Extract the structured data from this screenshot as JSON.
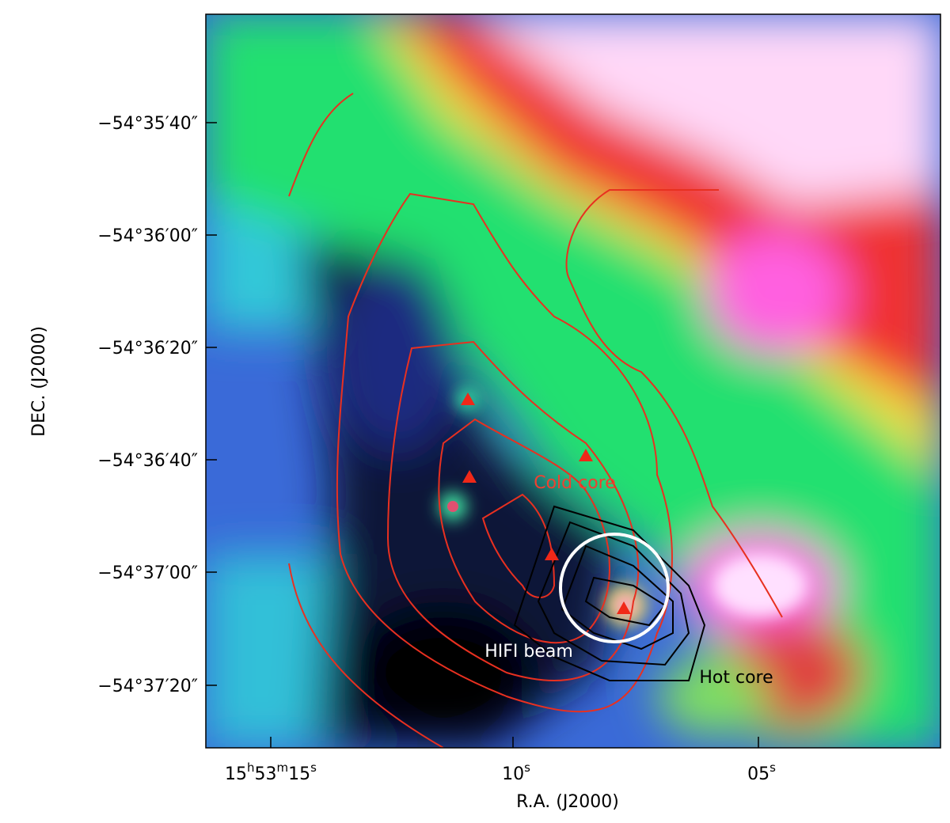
{
  "figure": {
    "x_axis": {
      "label": "R.A. (J2000)",
      "ticks": [
        {
          "parts": [
            "15",
            "h",
            "53",
            "m",
            "15",
            "s"
          ]
        },
        {
          "parts": [
            "10",
            "s"
          ]
        },
        {
          "parts": [
            "05",
            "s"
          ]
        }
      ]
    },
    "y_axis": {
      "label": "DEC. (J2000)",
      "ticks": [
        "−54°35′40″",
        "−54°36′00″",
        "−54°36′20″",
        "−54°36′40″",
        "−54°37′00″",
        "−54°37′20″"
      ]
    },
    "annotations": {
      "cold_core": "Cold core",
      "hifi_beam": "HIFI beam",
      "hot_core": "Hot core"
    }
  }
}
